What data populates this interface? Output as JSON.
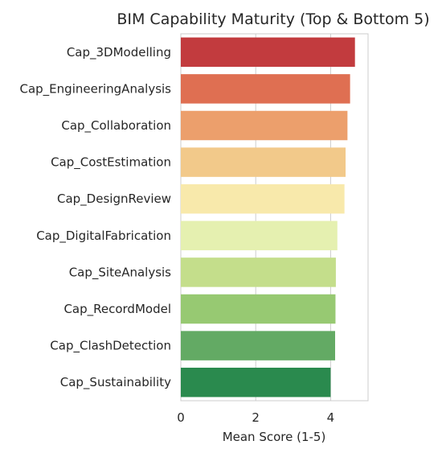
{
  "chart_data": {
    "type": "bar",
    "orientation": "horizontal",
    "title": "BIM Capability Maturity (Top & Bottom 5)",
    "xlabel": "Mean Score (1-5)",
    "ylabel": "",
    "xlim": [
      0,
      5
    ],
    "xticks": [
      0,
      2,
      4
    ],
    "grid": true,
    "categories": [
      "Cap_3DModelling",
      "Cap_EngineeringAnalysis",
      "Cap_Collaboration",
      "Cap_CostEstimation",
      "Cap_DesignReview",
      "Cap_DigitalFabrication",
      "Cap_SiteAnalysis",
      "Cap_RecordModel",
      "Cap_ClashDetection",
      "Cap_Sustainability"
    ],
    "values": [
      4.65,
      4.52,
      4.45,
      4.4,
      4.37,
      4.18,
      4.14,
      4.13,
      4.12,
      4.0
    ],
    "colors": [
      "#c23b3e",
      "#df6f52",
      "#ec9f6c",
      "#f2c98a",
      "#f8e9ab",
      "#e5f0b0",
      "#c4de8b",
      "#97c972",
      "#63aa64",
      "#2a8a4e"
    ]
  }
}
